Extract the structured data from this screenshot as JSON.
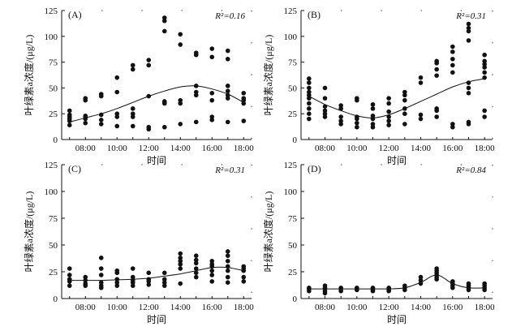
{
  "chart_data": [
    {
      "type": "scatter",
      "panel_label": "(A)",
      "r2": "R²=0.16",
      "xlabel": "时间",
      "ylabel": "叶绿素a浓度/(μg/L)",
      "x_ticks": [
        "08:00",
        "10:00",
        "12:00",
        "14:00",
        "16:00",
        "18:00"
      ],
      "y_ticks": [
        "0",
        "25",
        "50",
        "75",
        "100",
        "125"
      ],
      "xlim": [
        6.5,
        18.5
      ],
      "ylim": [
        0,
        125
      ],
      "points": [
        [
          7,
          14
        ],
        [
          7,
          18
        ],
        [
          7,
          20
        ],
        [
          7,
          22
        ],
        [
          7,
          24
        ],
        [
          7,
          28
        ],
        [
          8,
          16
        ],
        [
          8,
          20
        ],
        [
          8,
          22
        ],
        [
          8,
          23
        ],
        [
          8,
          38
        ],
        [
          8,
          40
        ],
        [
          9,
          15
        ],
        [
          9,
          19
        ],
        [
          9,
          24
        ],
        [
          9,
          42
        ],
        [
          9,
          44
        ],
        [
          10,
          13
        ],
        [
          10,
          22
        ],
        [
          10,
          25
        ],
        [
          10,
          46
        ],
        [
          10,
          60
        ],
        [
          11,
          13
        ],
        [
          11,
          22
        ],
        [
          11,
          25
        ],
        [
          11,
          30
        ],
        [
          11,
          68
        ],
        [
          11,
          72
        ],
        [
          12,
          10
        ],
        [
          12,
          12
        ],
        [
          12,
          42
        ],
        [
          12,
          72
        ],
        [
          12,
          77
        ],
        [
          13,
          12
        ],
        [
          13,
          35
        ],
        [
          13,
          36
        ],
        [
          13,
          37
        ],
        [
          13,
          105
        ],
        [
          13,
          115
        ],
        [
          13,
          118
        ],
        [
          14,
          15
        ],
        [
          14,
          35
        ],
        [
          14,
          38
        ],
        [
          14,
          92
        ],
        [
          14,
          102
        ],
        [
          15,
          17
        ],
        [
          15,
          43
        ],
        [
          15,
          46
        ],
        [
          15,
          52
        ],
        [
          15,
          82
        ],
        [
          15,
          84
        ],
        [
          16,
          19
        ],
        [
          16,
          22
        ],
        [
          16,
          38
        ],
        [
          16,
          45
        ],
        [
          16,
          80
        ],
        [
          16,
          88
        ],
        [
          17,
          17
        ],
        [
          17,
          40
        ],
        [
          17,
          43
        ],
        [
          17,
          47
        ],
        [
          17,
          52
        ],
        [
          17,
          78
        ],
        [
          17,
          86
        ],
        [
          18,
          18
        ],
        [
          18,
          35
        ],
        [
          18,
          38
        ],
        [
          18,
          40
        ],
        [
          18,
          45
        ]
      ],
      "trend": [
        [
          7,
          17
        ],
        [
          8,
          21
        ],
        [
          9,
          25
        ],
        [
          10,
          30
        ],
        [
          11,
          36
        ],
        [
          12,
          42
        ],
        [
          13,
          47
        ],
        [
          14,
          51
        ],
        [
          15,
          52
        ],
        [
          16,
          49
        ],
        [
          17,
          44
        ],
        [
          18,
          36
        ]
      ]
    },
    {
      "type": "scatter",
      "panel_label": "(B)",
      "r2": "R²=0.31",
      "xlabel": "时间",
      "ylabel": "叶绿素a浓度/(μg/L)",
      "x_ticks": [
        "08:00",
        "10:00",
        "12:00",
        "14:00",
        "16:00",
        "18:00"
      ],
      "y_ticks": [
        "0",
        "25",
        "50",
        "75",
        "100",
        "125"
      ],
      "xlim": [
        6.5,
        18.5
      ],
      "ylim": [
        0,
        125
      ],
      "points": [
        [
          7,
          20
        ],
        [
          7,
          25
        ],
        [
          7,
          30
        ],
        [
          7,
          35
        ],
        [
          7,
          40
        ],
        [
          7,
          43
        ],
        [
          7,
          46
        ],
        [
          7,
          50
        ],
        [
          7,
          55
        ],
        [
          7,
          59
        ],
        [
          8,
          22
        ],
        [
          8,
          25
        ],
        [
          8,
          28
        ],
        [
          8,
          32
        ],
        [
          8,
          40
        ],
        [
          8,
          50
        ],
        [
          9,
          15
        ],
        [
          9,
          18
        ],
        [
          9,
          22
        ],
        [
          9,
          30
        ],
        [
          9,
          33
        ],
        [
          10,
          12
        ],
        [
          10,
          16
        ],
        [
          10,
          20
        ],
        [
          10,
          22
        ],
        [
          10,
          38
        ],
        [
          10,
          40
        ],
        [
          11,
          12
        ],
        [
          11,
          15
        ],
        [
          11,
          20
        ],
        [
          11,
          23
        ],
        [
          11,
          30
        ],
        [
          11,
          34
        ],
        [
          12,
          14
        ],
        [
          12,
          18
        ],
        [
          12,
          22
        ],
        [
          12,
          27
        ],
        [
          12,
          35
        ],
        [
          12,
          40
        ],
        [
          13,
          15
        ],
        [
          13,
          25
        ],
        [
          13,
          30
        ],
        [
          13,
          38
        ],
        [
          13,
          43
        ],
        [
          13,
          46
        ],
        [
          14,
          20
        ],
        [
          14,
          24
        ],
        [
          14,
          55
        ],
        [
          14,
          60
        ],
        [
          15,
          22
        ],
        [
          15,
          28
        ],
        [
          15,
          30
        ],
        [
          15,
          62
        ],
        [
          15,
          68
        ],
        [
          15,
          74
        ],
        [
          15,
          76
        ],
        [
          16,
          12
        ],
        [
          16,
          15
        ],
        [
          16,
          65
        ],
        [
          16,
          72
        ],
        [
          16,
          78
        ],
        [
          16,
          85
        ],
        [
          16,
          90
        ],
        [
          17,
          15
        ],
        [
          17,
          17
        ],
        [
          17,
          45
        ],
        [
          17,
          50
        ],
        [
          17,
          55
        ],
        [
          17,
          96
        ],
        [
          17,
          105
        ],
        [
          17,
          108
        ],
        [
          17,
          112
        ],
        [
          18,
          22
        ],
        [
          18,
          28
        ],
        [
          18,
          60
        ],
        [
          18,
          65
        ],
        [
          18,
          70
        ],
        [
          18,
          73
        ],
        [
          18,
          76
        ],
        [
          18,
          82
        ]
      ],
      "trend": [
        [
          7,
          42
        ],
        [
          8,
          34
        ],
        [
          9,
          28
        ],
        [
          10,
          23
        ],
        [
          11,
          21
        ],
        [
          12,
          24
        ],
        [
          13,
          30
        ],
        [
          14,
          37
        ],
        [
          15,
          44
        ],
        [
          16,
          51
        ],
        [
          17,
          56
        ],
        [
          18,
          59
        ]
      ]
    },
    {
      "type": "scatter",
      "panel_label": "(C)",
      "r2": "R²=0.31",
      "xlabel": "时间",
      "ylabel": "叶绿素a浓度/(μg/L)",
      "x_ticks": [
        "08:00",
        "10:00",
        "12:00",
        "14:00",
        "16:00",
        "18:00"
      ],
      "y_ticks": [
        "0",
        "25",
        "50",
        "75",
        "100",
        "125"
      ],
      "xlim": [
        6.5,
        18.5
      ],
      "ylim": [
        0,
        125
      ],
      "points": [
        [
          7,
          12
        ],
        [
          7,
          16
        ],
        [
          7,
          18
        ],
        [
          7,
          22
        ],
        [
          7,
          28
        ],
        [
          8,
          12
        ],
        [
          8,
          14
        ],
        [
          8,
          17
        ],
        [
          8,
          20
        ],
        [
          9,
          10
        ],
        [
          9,
          12
        ],
        [
          9,
          15
        ],
        [
          9,
          22
        ],
        [
          9,
          28
        ],
        [
          9,
          38
        ],
        [
          10,
          12
        ],
        [
          10,
          15
        ],
        [
          10,
          18
        ],
        [
          10,
          24
        ],
        [
          10,
          26
        ],
        [
          11,
          12
        ],
        [
          11,
          15
        ],
        [
          11,
          17
        ],
        [
          11,
          20
        ],
        [
          11,
          28
        ],
        [
          12,
          13
        ],
        [
          12,
          16
        ],
        [
          12,
          18
        ],
        [
          12,
          24
        ],
        [
          13,
          12
        ],
        [
          13,
          15
        ],
        [
          13,
          18
        ],
        [
          13,
          24
        ],
        [
          14,
          14
        ],
        [
          14,
          28
        ],
        [
          14,
          32
        ],
        [
          14,
          35
        ],
        [
          14,
          38
        ],
        [
          14,
          42
        ],
        [
          15,
          20
        ],
        [
          15,
          24
        ],
        [
          15,
          28
        ],
        [
          15,
          33
        ],
        [
          15,
          36
        ],
        [
          15,
          40
        ],
        [
          16,
          16
        ],
        [
          16,
          22
        ],
        [
          16,
          26
        ],
        [
          16,
          30
        ],
        [
          16,
          32
        ],
        [
          16,
          35
        ],
        [
          17,
          15
        ],
        [
          17,
          20
        ],
        [
          17,
          26
        ],
        [
          17,
          30
        ],
        [
          17,
          35
        ],
        [
          17,
          40
        ],
        [
          17,
          44
        ],
        [
          18,
          16
        ],
        [
          18,
          20
        ],
        [
          18,
          26
        ],
        [
          18,
          28
        ],
        [
          18,
          30
        ]
      ],
      "trend": [
        [
          7,
          17
        ],
        [
          8,
          17
        ],
        [
          9,
          17
        ],
        [
          10,
          17.5
        ],
        [
          11,
          18
        ],
        [
          12,
          19
        ],
        [
          13,
          21
        ],
        [
          14,
          23
        ],
        [
          15,
          26
        ],
        [
          16,
          29
        ],
        [
          17,
          29
        ],
        [
          18,
          26
        ]
      ]
    },
    {
      "type": "scatter",
      "panel_label": "(D)",
      "r2": "R²=0.84",
      "xlabel": "时间",
      "ylabel": "叶绿素a浓度/(μg/L)",
      "x_ticks": [
        "08:00",
        "10:00",
        "12:00",
        "14:00",
        "16:00",
        "18:00"
      ],
      "y_ticks": [
        "0",
        "25",
        "50",
        "75",
        "100",
        "125"
      ],
      "xlim": [
        6.5,
        18.5
      ],
      "ylim": [
        0,
        125
      ],
      "points": [
        [
          7,
          7
        ],
        [
          7,
          9
        ],
        [
          7,
          10
        ],
        [
          8,
          5
        ],
        [
          8,
          7
        ],
        [
          8,
          9
        ],
        [
          8,
          10
        ],
        [
          8,
          12
        ],
        [
          9,
          7
        ],
        [
          9,
          9
        ],
        [
          9,
          10
        ],
        [
          10,
          8
        ],
        [
          10,
          9
        ],
        [
          10,
          10
        ],
        [
          11,
          7
        ],
        [
          11,
          8
        ],
        [
          11,
          9
        ],
        [
          11,
          10
        ],
        [
          12,
          7
        ],
        [
          12,
          8
        ],
        [
          12,
          9
        ],
        [
          12,
          10
        ],
        [
          13,
          8
        ],
        [
          13,
          10
        ],
        [
          13,
          12
        ],
        [
          14,
          14
        ],
        [
          14,
          17
        ],
        [
          14,
          20
        ],
        [
          15,
          18
        ],
        [
          15,
          20
        ],
        [
          15,
          22
        ],
        [
          15,
          24
        ],
        [
          15,
          26
        ],
        [
          15,
          28
        ],
        [
          16,
          10
        ],
        [
          16,
          12
        ],
        [
          16,
          14
        ],
        [
          16,
          16
        ],
        [
          17,
          8
        ],
        [
          17,
          10
        ],
        [
          17,
          12
        ],
        [
          17,
          14
        ],
        [
          18,
          8
        ],
        [
          18,
          10
        ],
        [
          18,
          12
        ],
        [
          18,
          14
        ]
      ],
      "trend": [
        [
          7,
          9
        ],
        [
          8,
          9
        ],
        [
          9,
          9
        ],
        [
          10,
          9
        ],
        [
          11,
          9
        ],
        [
          12,
          9
        ],
        [
          13,
          10
        ],
        [
          14,
          15
        ],
        [
          15,
          22
        ],
        [
          16,
          14
        ],
        [
          17,
          10
        ],
        [
          18,
          10
        ]
      ]
    }
  ]
}
